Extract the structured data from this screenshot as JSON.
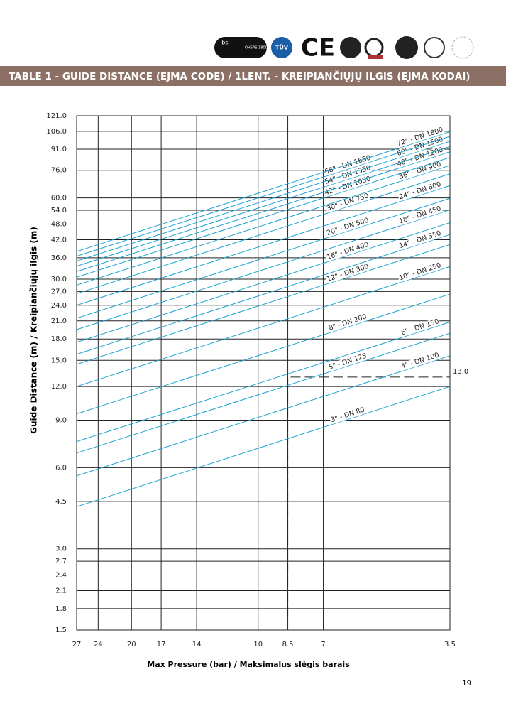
{
  "logos": [
    "bsi",
    "OHSAS 18001",
    "TÜV",
    "CE"
  ],
  "banner": "TABLE 1 - GUIDE DISTANCE (EJMA CODE) / 1LENT. - KREIPIANČIŲJŲ ILGIS (EJMA KODAI)",
  "page_number": "19",
  "chart_data": {
    "type": "line",
    "x_label": "Max Pressure (bar) / Maksimalus slėgis barais",
    "y_label": "Guide Distance (m) / Kreipiančiųjų ilgis (m)",
    "log_x": true,
    "log_y": true,
    "grid": true,
    "xlim": [
      27,
      3.5
    ],
    "ylim": [
      1.5,
      121
    ],
    "xticks": [
      27,
      24,
      20,
      17,
      14,
      10,
      8.5,
      7,
      3.5
    ],
    "yticks": [
      {
        "value": 121,
        "label": "121.0"
      },
      {
        "value": 106,
        "label": "106.0"
      },
      {
        "value": 91,
        "label": "91.0"
      },
      {
        "value": 76,
        "label": "76.0"
      },
      {
        "value": 60,
        "label": "60.0"
      },
      {
        "value": 54,
        "label": "54.0"
      },
      {
        "value": 48,
        "label": "48.0"
      },
      {
        "value": 42,
        "label": "42.0"
      },
      {
        "value": 36,
        "label": "36.0"
      },
      {
        "value": 30,
        "label": "30.0"
      },
      {
        "value": 27,
        "label": "27.0"
      },
      {
        "value": 24,
        "label": "24.0"
      },
      {
        "value": 21,
        "label": "21.0"
      },
      {
        "value": 18,
        "label": "18.0"
      },
      {
        "value": 15,
        "label": "15.0"
      },
      {
        "value": 12,
        "label": "12.0"
      },
      {
        "value": 9,
        "label": "9.0"
      },
      {
        "value": 6,
        "label": "6.0"
      },
      {
        "value": 4.5,
        "label": "4.5"
      },
      {
        "value": 3,
        "label": "3.0"
      },
      2.7,
      2.4,
      2.1,
      1.8,
      1.5
    ],
    "x": [
      27,
      3.5
    ],
    "line_color": "#1aa3d4",
    "series": [
      {
        "name": "3\" - DN 80",
        "values": [
          4.3,
          12.0
        ]
      },
      {
        "name": "4\" - DN 100",
        "values": [
          5.6,
          15.6
        ]
      },
      {
        "name": "5\" - DN 125",
        "values": [
          6.8,
          18.9
        ]
      },
      {
        "name": "6\" - DN 150",
        "values": [
          7.5,
          20.8
        ]
      },
      {
        "name": "8\" - DN 200",
        "values": [
          9.5,
          26.4
        ]
      },
      {
        "name": "10\" - DN 250",
        "values": [
          12.0,
          33.4
        ]
      },
      {
        "name": "12\" - DN 300",
        "values": [
          14.5,
          40.3
        ]
      },
      {
        "name": "14\" - DN 350",
        "values": [
          15.8,
          43.9
        ]
      },
      {
        "name": "16\" - DN 400",
        "values": [
          17.5,
          48.6
        ]
      },
      {
        "name": "18\" - DN 450",
        "values": [
          19.5,
          54.2
        ]
      },
      {
        "name": "20\" - DN 500",
        "values": [
          21.5,
          59.8
        ]
      },
      {
        "name": "24\" - DN 600",
        "values": [
          24.0,
          66.7
        ]
      },
      {
        "name": "30\" - DN 750",
        "values": [
          26.5,
          73.7
        ]
      },
      {
        "name": "36\" - DN 900",
        "values": [
          28.5,
          79.2
        ]
      },
      {
        "name": "42\" - DN 1050",
        "values": [
          30.5,
          84.8
        ]
      },
      {
        "name": "48\" - DN 1200",
        "values": [
          32.0,
          89.0
        ]
      },
      {
        "name": "54\" - DN 1350",
        "values": [
          33.5,
          93.0
        ]
      },
      {
        "name": "60\" - DN 1500",
        "values": [
          35.0,
          97.3
        ]
      },
      {
        "name": "66\" - DN 1650",
        "values": [
          36.5,
          101.5
        ]
      },
      {
        "name": "72\" - DN 1800",
        "values": [
          38.0,
          105.6
        ]
      }
    ],
    "marker": {
      "x": 8.5,
      "y": 13,
      "label": "13.0"
    }
  }
}
